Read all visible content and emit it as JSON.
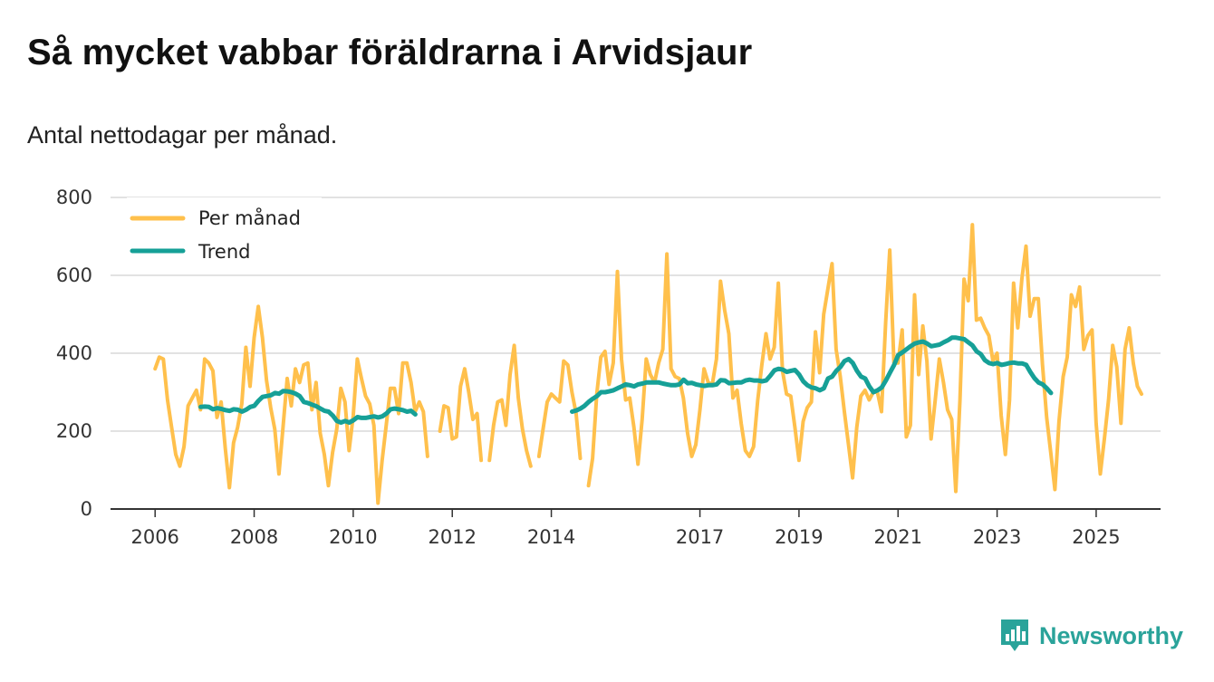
{
  "title": "Så mycket vabbar föräldrarna i Arvidsjaur",
  "subtitle": "Antal nettodagar per månad.",
  "brand": {
    "name": "Newsworthy"
  },
  "chart_data": {
    "type": "line",
    "ylim": [
      0,
      800
    ],
    "yticks": [
      0,
      200,
      400,
      600,
      800
    ],
    "xlim": [
      2005.1,
      2026.3
    ],
    "xticks": [
      {
        "label": "2006",
        "year": 2006
      },
      {
        "label": "2008",
        "year": 2008
      },
      {
        "label": "2010",
        "year": 2010
      },
      {
        "label": "2012",
        "year": 2012
      },
      {
        "label": "2014",
        "year": 2014
      },
      {
        "label": "2017",
        "year": 2017
      },
      {
        "label": "2019",
        "year": 2019
      },
      {
        "label": "2021",
        "year": 2021
      },
      {
        "label": "2023",
        "year": 2023
      },
      {
        "label": "2025",
        "year": 2025
      }
    ],
    "grid": true,
    "legend_position": "top-left",
    "series": [
      {
        "name": "Per månad",
        "color": "#ffc04c",
        "segments": [
          {
            "start": 2006.0,
            "values": [
              360,
              390,
              385,
              280,
              210,
              140,
              110,
              160,
              265,
              285,
              305,
              255,
              385,
              375,
              355,
              235,
              275,
              155,
              55,
              170,
              210,
              270,
              415,
              315,
              440,
              520,
              440,
              330,
              260,
              205,
              90,
              210,
              335,
              265,
              360,
              325,
              370,
              375,
              255,
              325,
              195,
              140,
              60,
              145,
              205,
              310,
              275,
              150,
              240,
              385,
              335,
              290,
              270,
              215,
              15,
              125,
              215,
              310,
              310,
              245,
              375,
              375,
              325,
              250,
              275,
              250,
              135
            ]
          },
          {
            "start": 2011.75,
            "values": [
              200,
              265,
              260,
              180,
              185,
              315,
              360,
              300,
              230,
              245,
              125
            ]
          },
          {
            "start": 2012.75,
            "values": [
              125,
              215,
              275,
              280,
              215,
              345,
              420,
              285,
              205,
              150,
              110
            ]
          },
          {
            "start": 2013.75,
            "values": [
              135,
              205,
              275,
              295,
              285,
              275,
              380,
              370,
              300,
              245,
              130
            ]
          },
          {
            "start": 2014.75,
            "values": [
              60,
              130,
              295,
              390,
              405,
              320,
              375,
              610,
              385,
              280,
              285,
              210,
              115,
              230,
              385,
              345,
              325,
              375,
              410,
              655,
              360,
              340,
              335,
              285,
              195,
              135,
              165,
              255,
              360,
              325,
              320,
              385,
              585,
              510,
              450,
              285,
              305,
              220,
              150,
              135,
              160,
              280,
              370,
              450,
              385,
              415,
              580,
              355,
              295,
              290,
              210,
              125,
              225,
              260,
              275,
              455,
              350,
              500,
              565,
              630,
              410,
              340,
              250,
              165,
              80,
              210,
              290,
              305,
              280,
              300,
              300,
              250,
              480,
              665,
              375,
              375,
              460,
              185,
              215,
              550,
              345,
              470,
              380,
              180,
              280,
              385,
              325,
              255,
              230,
              45,
              280,
              590,
              535,
              730,
              485,
              490,
              465,
              445,
              380,
              400,
              240,
              140,
              280,
              580,
              465,
              590,
              675,
              495,
              540,
              540,
              370,
              235,
              145,
              50,
              225,
              340,
              390,
              550,
              520,
              570,
              410,
              445,
              460,
              220,
              90,
              180,
              280,
              420,
              365,
              220,
              410,
              465,
              375,
              315,
              295
            ]
          }
        ]
      },
      {
        "name": "Trend",
        "color": "#16a097",
        "segments": [
          {
            "start": 2006.92,
            "values": [
              262,
              263,
              262,
              256,
              259,
              257,
              254,
              252,
              256,
              255,
              250,
              255,
              262,
              265,
              278,
              288,
              290,
              292,
              298,
              296,
              303,
              302,
              300,
              296,
              290,
              275,
              272,
              268,
              264,
              258,
              252,
              250,
              240,
              226,
              222,
              226,
              222,
              228,
              236,
              234,
              234,
              236,
              238,
              235,
              238,
              245,
              256,
              258,
              256,
              254,
              250,
              252,
              243
            ]
          },
          {
            "start": 2014.42,
            "values": [
              250,
              253,
              258,
              265,
              275,
              283,
              290,
              300,
              300,
              302,
              305,
              310,
              315,
              320,
              318,
              315,
              320,
              322,
              325,
              325,
              325,
              325,
              322,
              320,
              318,
              318,
              320,
              332,
              323,
              324,
              320,
              318,
              316,
              318,
              318,
              320,
              331,
              330,
              323,
              324,
              325,
              325,
              330,
              332,
              330,
              330,
              328,
              330,
              342,
              356,
              360,
              358,
              352,
              355,
              357,
              345,
              328,
              318,
              312,
              310,
              305,
              310,
              335,
              340,
              355,
              365,
              380,
              385,
              375,
              355,
              340,
              335,
              315,
              300,
              305,
              312,
              330,
              350,
              370,
              395,
              402,
              410,
              418,
              425,
              428,
              430,
              425,
              418,
              420,
              422,
              428,
              433,
              440,
              440,
              438,
              436,
              428,
              420,
              405,
              398,
              382,
              375,
              372,
              375,
              370,
              372,
              375,
              376,
              374,
              374,
              370,
              352,
              336,
              325,
              320,
              310,
              298
            ]
          }
        ]
      }
    ]
  }
}
